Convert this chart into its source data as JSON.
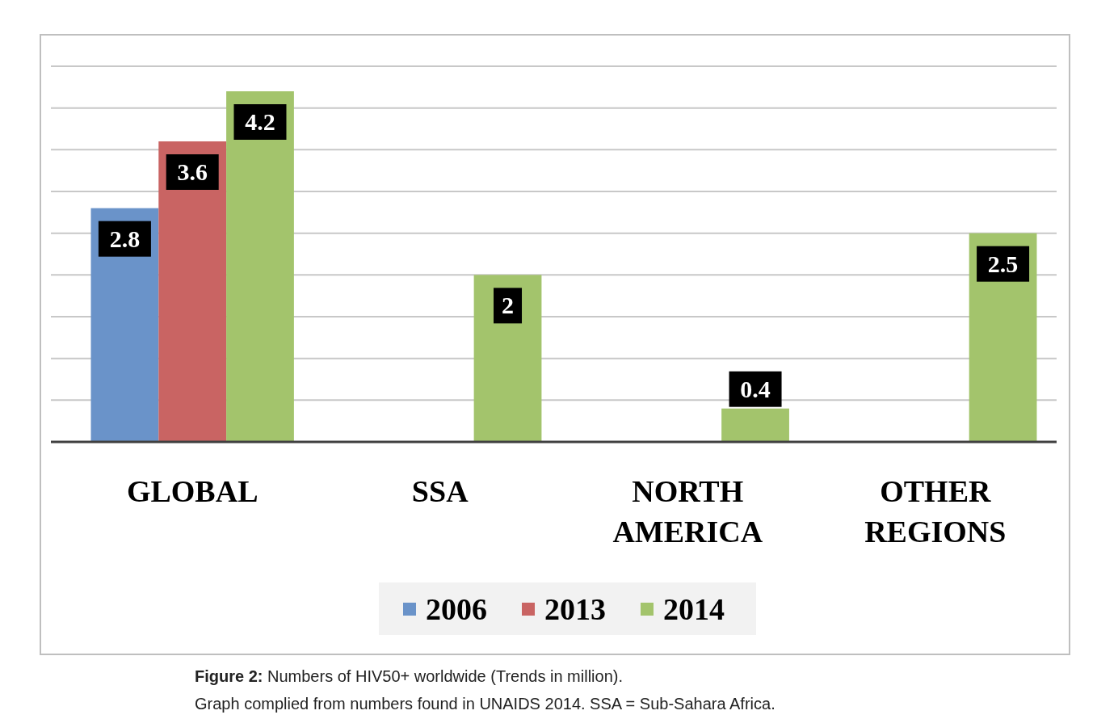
{
  "chart_data": {
    "type": "bar",
    "categories": [
      "GLOBAL",
      "SSA",
      "NORTH AMERICA",
      "OTHER REGIONS"
    ],
    "series": [
      {
        "name": "2006",
        "color": "#6a93c9",
        "values": [
          2.8,
          null,
          null,
          null
        ]
      },
      {
        "name": "2013",
        "color": "#c96463",
        "values": [
          3.6,
          null,
          null,
          null
        ]
      },
      {
        "name": "2014",
        "color": "#a3c46c",
        "values": [
          4.2,
          2,
          0.4,
          2.5
        ]
      }
    ],
    "ylim": [
      0,
      4.5
    ],
    "yticks": [
      {
        "value": 0,
        "label": null
      },
      {
        "value": 0.5,
        "label": null
      },
      {
        "value": 1,
        "label": null
      },
      {
        "value": 1.5,
        "label": null
      },
      {
        "value": 2,
        "label": null
      },
      {
        "value": 2.5,
        "label": null
      },
      {
        "value": 3,
        "label": null
      },
      {
        "value": 3.5,
        "label": null
      },
      {
        "value": 4,
        "label": null
      },
      {
        "value": 4.5,
        "label": null
      }
    ],
    "grid": "y",
    "data_labels": true,
    "legend": "bottom",
    "tick_labels": "x",
    "annotations": [
      "Figure 2: Numbers of HIV50+ worldwide (Trends in million).",
      "Graph complied from numbers found in UNAIDS 2014. SSA = Sub-Sahara Africa."
    ]
  }
}
